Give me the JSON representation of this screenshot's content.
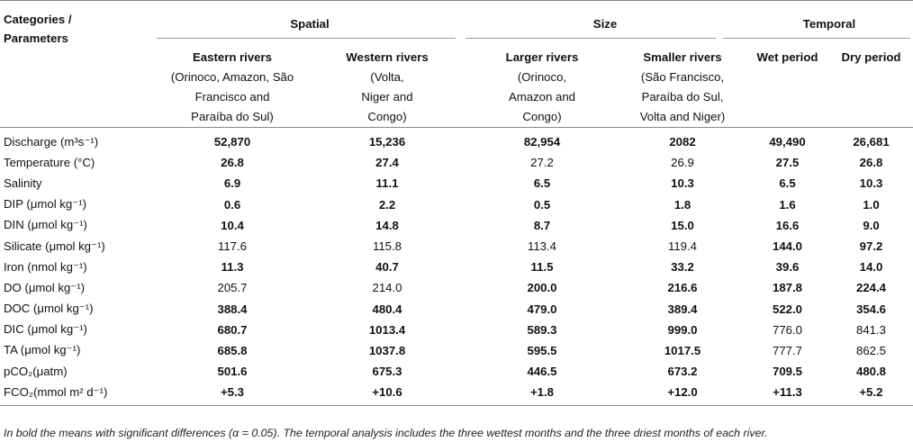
{
  "header": {
    "category_label_line1": "Categories /",
    "category_label_line2": "Parameters",
    "groups": [
      "Spatial",
      "Size",
      "Temporal"
    ],
    "columns": [
      {
        "name": "Eastern rivers",
        "lines": [
          "(Orinoco, Amazon, São",
          "Francisco and",
          "Paraíba do Sul)"
        ]
      },
      {
        "name": "Western rivers",
        "lines": [
          "(Volta,",
          "Niger and",
          "Congo)"
        ]
      },
      {
        "name": "Larger rivers",
        "lines": [
          "(Orinoco,",
          "Amazon and",
          "Congo)"
        ]
      },
      {
        "name": "Smaller rivers",
        "lines": [
          "(São Francisco,",
          "Paraíba do Sul,",
          "Volta and Niger)"
        ]
      },
      {
        "name": "Wet period",
        "lines": []
      },
      {
        "name": "Dry period",
        "lines": []
      }
    ]
  },
  "rows": [
    {
      "param": "Discharge (m³s⁻¹)",
      "values": [
        "52,870",
        "15,236",
        "82,954",
        "2082",
        "49,490",
        "26,681"
      ],
      "bold": [
        true,
        true,
        true,
        true,
        true,
        true
      ]
    },
    {
      "param": "Temperature (°C)",
      "values": [
        "26.8",
        "27.4",
        "27.2",
        "26.9",
        "27.5",
        "26.8"
      ],
      "bold": [
        true,
        true,
        false,
        false,
        true,
        true
      ]
    },
    {
      "param": "Salinity",
      "values": [
        "6.9",
        "11.1",
        "6.5",
        "10.3",
        "6.5",
        "10.3"
      ],
      "bold": [
        true,
        true,
        true,
        true,
        true,
        true
      ]
    },
    {
      "param": "DIP (μmol kg⁻¹)",
      "values": [
        "0.6",
        "2.2",
        "0.5",
        "1.8",
        "1.6",
        "1.0"
      ],
      "bold": [
        true,
        true,
        true,
        true,
        true,
        true
      ]
    },
    {
      "param": "DIN (μmol kg⁻¹)",
      "values": [
        "10.4",
        "14.8",
        "8.7",
        "15.0",
        "16.6",
        "9.0"
      ],
      "bold": [
        true,
        true,
        true,
        true,
        true,
        true
      ]
    },
    {
      "param": "Silicate (μmol kg⁻¹)",
      "values": [
        "117.6",
        "115.8",
        "113.4",
        "119.4",
        "144.0",
        "97.2"
      ],
      "bold": [
        false,
        false,
        false,
        false,
        true,
        true
      ]
    },
    {
      "param": "Iron (nmol kg⁻¹)",
      "values": [
        "11.3",
        "40.7",
        "11.5",
        "33.2",
        "39.6",
        "14.0"
      ],
      "bold": [
        true,
        true,
        true,
        true,
        true,
        true
      ]
    },
    {
      "param": "DO (μmol kg⁻¹)",
      "values": [
        "205.7",
        "214.0",
        "200.0",
        "216.6",
        "187.8",
        "224.4"
      ],
      "bold": [
        false,
        false,
        true,
        true,
        true,
        true
      ]
    },
    {
      "param": "DOC (μmol kg⁻¹)",
      "values": [
        "388.4",
        "480.4",
        "479.0",
        "389.4",
        "522.0",
        "354.6"
      ],
      "bold": [
        true,
        true,
        true,
        true,
        true,
        true
      ]
    },
    {
      "param": "DIC (μmol kg⁻¹)",
      "values": [
        "680.7",
        "1013.4",
        "589.3",
        "999.0",
        "776.0",
        "841.3"
      ],
      "bold": [
        true,
        true,
        true,
        true,
        false,
        false
      ]
    },
    {
      "param": "TA (μmol kg⁻¹)",
      "values": [
        "685.8",
        "1037.8",
        "595.5",
        "1017.5",
        "777.7",
        "862.5"
      ],
      "bold": [
        true,
        true,
        true,
        true,
        false,
        false
      ]
    },
    {
      "param": "pCO₂(μatm)",
      "values": [
        "501.6",
        "675.3",
        "446.5",
        "673.2",
        "709.5",
        "480.8"
      ],
      "bold": [
        true,
        true,
        true,
        true,
        true,
        true
      ]
    },
    {
      "param": "FCO₂(mmol m² d⁻¹)",
      "values": [
        "+5.3",
        "+10.6",
        "+1.8",
        "+12.0",
        "+11.3",
        "+5.2"
      ],
      "bold": [
        true,
        true,
        true,
        true,
        true,
        true
      ]
    }
  ],
  "footnote": "In bold the means with significant differences (α = 0.05). The temporal analysis includes the three wettest months and the three driest months of each river."
}
